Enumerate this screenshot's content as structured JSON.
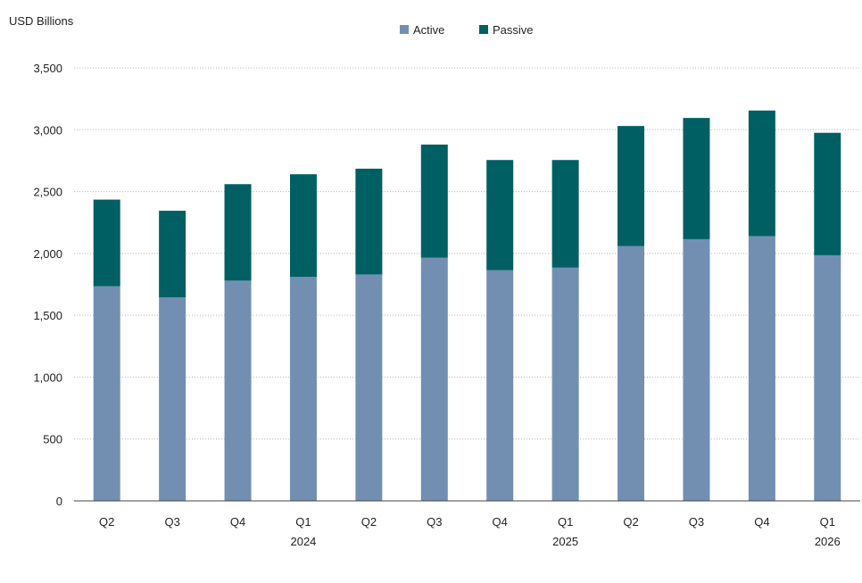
{
  "chart_data": {
    "type": "bar",
    "stacked": true,
    "ylabel": "USD Billions",
    "ylim": [
      0,
      3500
    ],
    "yticks": [
      0,
      500,
      1000,
      1500,
      2000,
      2500,
      3000,
      3500
    ],
    "ytick_labels": [
      "0",
      "500",
      "1,000",
      "1,500",
      "2,000",
      "2,500",
      "3,000",
      "3,500"
    ],
    "grid": "horizontal-dotted",
    "legend_position": "top-center",
    "categories": [
      {
        "q": "Q2",
        "year": ""
      },
      {
        "q": "Q3",
        "year": ""
      },
      {
        "q": "Q4",
        "year": ""
      },
      {
        "q": "Q1",
        "year": "2024"
      },
      {
        "q": "Q2",
        "year": ""
      },
      {
        "q": "Q3",
        "year": ""
      },
      {
        "q": "Q4",
        "year": ""
      },
      {
        "q": "Q1",
        "year": "2025"
      },
      {
        "q": "Q2",
        "year": ""
      },
      {
        "q": "Q3",
        "year": ""
      },
      {
        "q": "Q4",
        "year": ""
      },
      {
        "q": "Q1",
        "year": "2026"
      }
    ],
    "series": [
      {
        "name": "Active",
        "color": "#728fb2",
        "values": [
          1735,
          1645,
          1780,
          1810,
          1830,
          1965,
          1865,
          1885,
          2060,
          2115,
          2140,
          1985
        ]
      },
      {
        "name": "Passive",
        "color": "#005f63",
        "values": [
          700,
          700,
          780,
          830,
          855,
          915,
          890,
          870,
          970,
          980,
          1015,
          990
        ]
      }
    ]
  }
}
